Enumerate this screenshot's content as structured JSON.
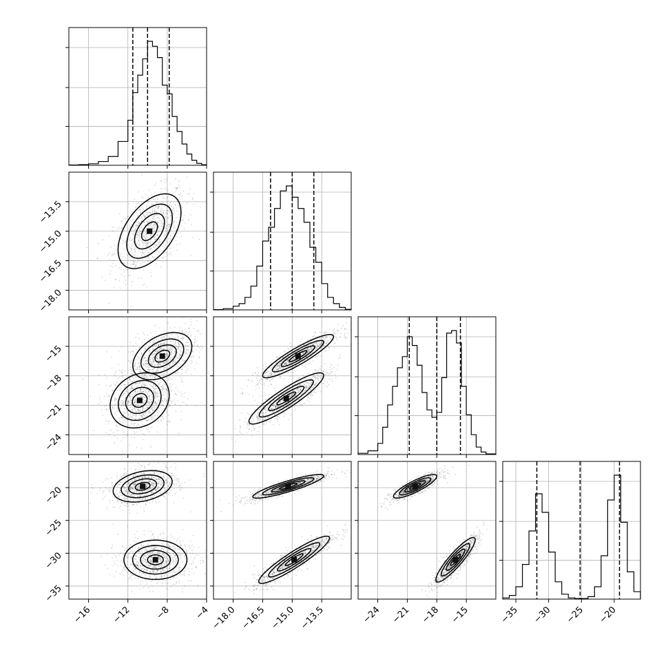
{
  "chart_data": {
    "type": "corner",
    "parameters": [
      {
        "range": [
          -18,
          -4
        ],
        "ticks": [
          -16,
          -12,
          -8,
          -4
        ],
        "tick_labels": [
          "−16",
          "−12",
          "−8",
          "−4"
        ]
      },
      {
        "range": [
          -19,
          -12
        ],
        "ticks": [
          -18.0,
          -16.5,
          -15.0,
          -13.5
        ],
        "tick_labels": [
          "−18.0",
          "−16.5",
          "−15.0",
          "−13.5"
        ]
      },
      {
        "range": [
          -26,
          -12
        ],
        "ticks": [
          -24,
          -21,
          -18,
          -15
        ],
        "tick_labels": [
          "−24",
          "−21",
          "−18",
          "−15"
        ]
      },
      {
        "range": [
          -37,
          -16
        ],
        "ticks": [
          -35,
          -30,
          -25,
          -20
        ],
        "tick_labels": [
          "−35",
          "−30",
          "−25",
          "−20"
        ]
      }
    ],
    "grid": true,
    "histograms": [
      {
        "param": 0,
        "quantiles": [
          -11.5,
          -10.0,
          -7.8
        ],
        "bins": [
          [
            -18,
            -17,
            0.002
          ],
          [
            -17,
            -16,
            0.005
          ],
          [
            -16,
            -15,
            0.012
          ],
          [
            -15,
            -14,
            0.03
          ],
          [
            -14,
            -13,
            0.07
          ],
          [
            -13,
            -12,
            0.19
          ],
          [
            -12,
            -11.5,
            0.36
          ],
          [
            -11.5,
            -11,
            0.58
          ],
          [
            -11,
            -10.5,
            0.72
          ],
          [
            -10.5,
            -10,
            0.85
          ],
          [
            -10,
            -9.5,
            0.99
          ],
          [
            -9.5,
            -9,
            0.95
          ],
          [
            -9,
            -8.5,
            0.86
          ],
          [
            -8.5,
            -8,
            0.64
          ],
          [
            -8,
            -7.5,
            0.57
          ],
          [
            -7.5,
            -7,
            0.39
          ],
          [
            -7,
            -6.5,
            0.27
          ],
          [
            -6.5,
            -6,
            0.17
          ],
          [
            -6,
            -5.5,
            0.09
          ],
          [
            -5.5,
            -5,
            0.04
          ],
          [
            -5,
            -4.5,
            0.015
          ],
          [
            -4.5,
            -4,
            0.004
          ]
        ]
      },
      {
        "param": 1,
        "quantiles": [
          -16.1,
          -15.0,
          -13.9
        ],
        "bins": [
          [
            -19,
            -18.5,
            0.002
          ],
          [
            -18.5,
            -18,
            0.01
          ],
          [
            -18,
            -17.7,
            0.03
          ],
          [
            -17.7,
            -17.4,
            0.05
          ],
          [
            -17.4,
            -17.1,
            0.1
          ],
          [
            -17.1,
            -16.8,
            0.19
          ],
          [
            -16.8,
            -16.5,
            0.35
          ],
          [
            -16.5,
            -16.2,
            0.55
          ],
          [
            -16.2,
            -15.9,
            0.66
          ],
          [
            -15.9,
            -15.6,
            0.81
          ],
          [
            -15.6,
            -15.3,
            0.95
          ],
          [
            -15.3,
            -15.0,
            0.99
          ],
          [
            -15.0,
            -14.7,
            0.9
          ],
          [
            -14.7,
            -14.4,
            0.81
          ],
          [
            -14.4,
            -14.1,
            0.7
          ],
          [
            -14.1,
            -13.8,
            0.5
          ],
          [
            -13.8,
            -13.5,
            0.38
          ],
          [
            -13.5,
            -13.2,
            0.21
          ],
          [
            -13.2,
            -12.9,
            0.1
          ],
          [
            -12.9,
            -12.6,
            0.05
          ],
          [
            -12.6,
            -12.3,
            0.02
          ],
          [
            -12.3,
            -12,
            0.004
          ]
        ]
      },
      {
        "param": 2,
        "quantiles": [
          -20.8,
          -18.0,
          -15.6
        ],
        "bins": [
          [
            -26,
            -25,
            0.01
          ],
          [
            -25,
            -24,
            0.03
          ],
          [
            -24,
            -23.5,
            0.09
          ],
          [
            -23.5,
            -23,
            0.22
          ],
          [
            -23,
            -22.5,
            0.4
          ],
          [
            -22.5,
            -22,
            0.55
          ],
          [
            -22,
            -21.5,
            0.7
          ],
          [
            -21.5,
            -21,
            0.79
          ],
          [
            -21,
            -20.5,
            0.95
          ],
          [
            -20.5,
            -20,
            0.88
          ],
          [
            -20,
            -19.5,
            0.72
          ],
          [
            -19.5,
            -19,
            0.5
          ],
          [
            -19,
            -18.5,
            0.36
          ],
          [
            -18.5,
            -18,
            0.3
          ],
          [
            -18,
            -17.5,
            0.34
          ],
          [
            -17.5,
            -17,
            0.62
          ],
          [
            -17,
            -16.5,
            0.98
          ],
          [
            -16.5,
            -16,
            1.0
          ],
          [
            -16,
            -15.5,
            0.9
          ],
          [
            -15.5,
            -15,
            0.55
          ],
          [
            -15,
            -14.5,
            0.32
          ],
          [
            -14.5,
            -14,
            0.16
          ],
          [
            -14,
            -13.5,
            0.06
          ],
          [
            -13.5,
            -13,
            0.02
          ],
          [
            -13,
            -12,
            0.005
          ]
        ]
      },
      {
        "param": 3,
        "quantiles": [
          -31.8,
          -25.2,
          -19.2
        ],
        "bins": [
          [
            -37,
            -36,
            0.01
          ],
          [
            -36,
            -35,
            0.03
          ],
          [
            -35,
            -34,
            0.1
          ],
          [
            -34,
            -33,
            0.28
          ],
          [
            -33,
            -32,
            0.55
          ],
          [
            -32,
            -31,
            0.85
          ],
          [
            -31,
            -30,
            0.7
          ],
          [
            -30,
            -29,
            0.38
          ],
          [
            -29,
            -28,
            0.14
          ],
          [
            -28,
            -27,
            0.04
          ],
          [
            -27,
            -26,
            0.01
          ],
          [
            -26,
            -25,
            0.005
          ],
          [
            -25,
            -24,
            0.005
          ],
          [
            -24,
            -23,
            0.02
          ],
          [
            -23,
            -22,
            0.1
          ],
          [
            -22,
            -21,
            0.35
          ],
          [
            -21,
            -20,
            0.8
          ],
          [
            -20,
            -19,
            1.0
          ],
          [
            -19,
            -18,
            0.62
          ],
          [
            -18,
            -17,
            0.22
          ],
          [
            -17,
            -16,
            0.06
          ]
        ]
      }
    ],
    "scatter_2d": [
      {
        "x_param": 0,
        "y_param": 1,
        "modes": [
          {
            "x": -9.8,
            "y": -15.0,
            "sx": 1.6,
            "sy": 0.95,
            "rho": 0.5
          }
        ]
      },
      {
        "x_param": 0,
        "y_param": 2,
        "modes": [
          {
            "x": -8.5,
            "y": -16.0,
            "sx": 1.5,
            "sy": 1.2,
            "rho": 0.4
          },
          {
            "x": -10.8,
            "y": -20.5,
            "sx": 1.5,
            "sy": 1.4,
            "rho": 0.2
          }
        ]
      },
      {
        "x_param": 1,
        "y_param": 2,
        "modes": [
          {
            "x": -14.7,
            "y": -16.0,
            "sx": 0.9,
            "sy": 1.1,
            "rho": 0.9
          },
          {
            "x": -15.3,
            "y": -20.3,
            "sx": 0.95,
            "sy": 1.3,
            "rho": 0.9
          }
        ]
      },
      {
        "x_param": 2,
        "y_param": 2,
        "modes": []
      },
      {
        "x_param": 0,
        "y_param": 3,
        "modes": [
          {
            "x": -10.5,
            "y": -19.8,
            "sx": 1.5,
            "sy": 1.2,
            "rho": 0.3
          },
          {
            "x": -9.2,
            "y": -31.0,
            "sx": 1.6,
            "sy": 1.5,
            "rho": 0.0
          }
        ]
      },
      {
        "x_param": 1,
        "y_param": 3,
        "modes": [
          {
            "x": -15.2,
            "y": -19.8,
            "sx": 0.9,
            "sy": 0.9,
            "rho": 0.88
          },
          {
            "x": -14.9,
            "y": -31.0,
            "sx": 0.9,
            "sy": 1.8,
            "rho": 0.92
          }
        ]
      },
      {
        "x_param": 2,
        "y_param": 3,
        "modes": [
          {
            "x": -20.2,
            "y": -19.8,
            "sx": 1.1,
            "sy": 0.9,
            "rho": 0.85
          },
          {
            "x": -16.1,
            "y": -31.0,
            "sx": 1.0,
            "sy": 1.7,
            "rho": 0.9
          }
        ]
      }
    ]
  }
}
